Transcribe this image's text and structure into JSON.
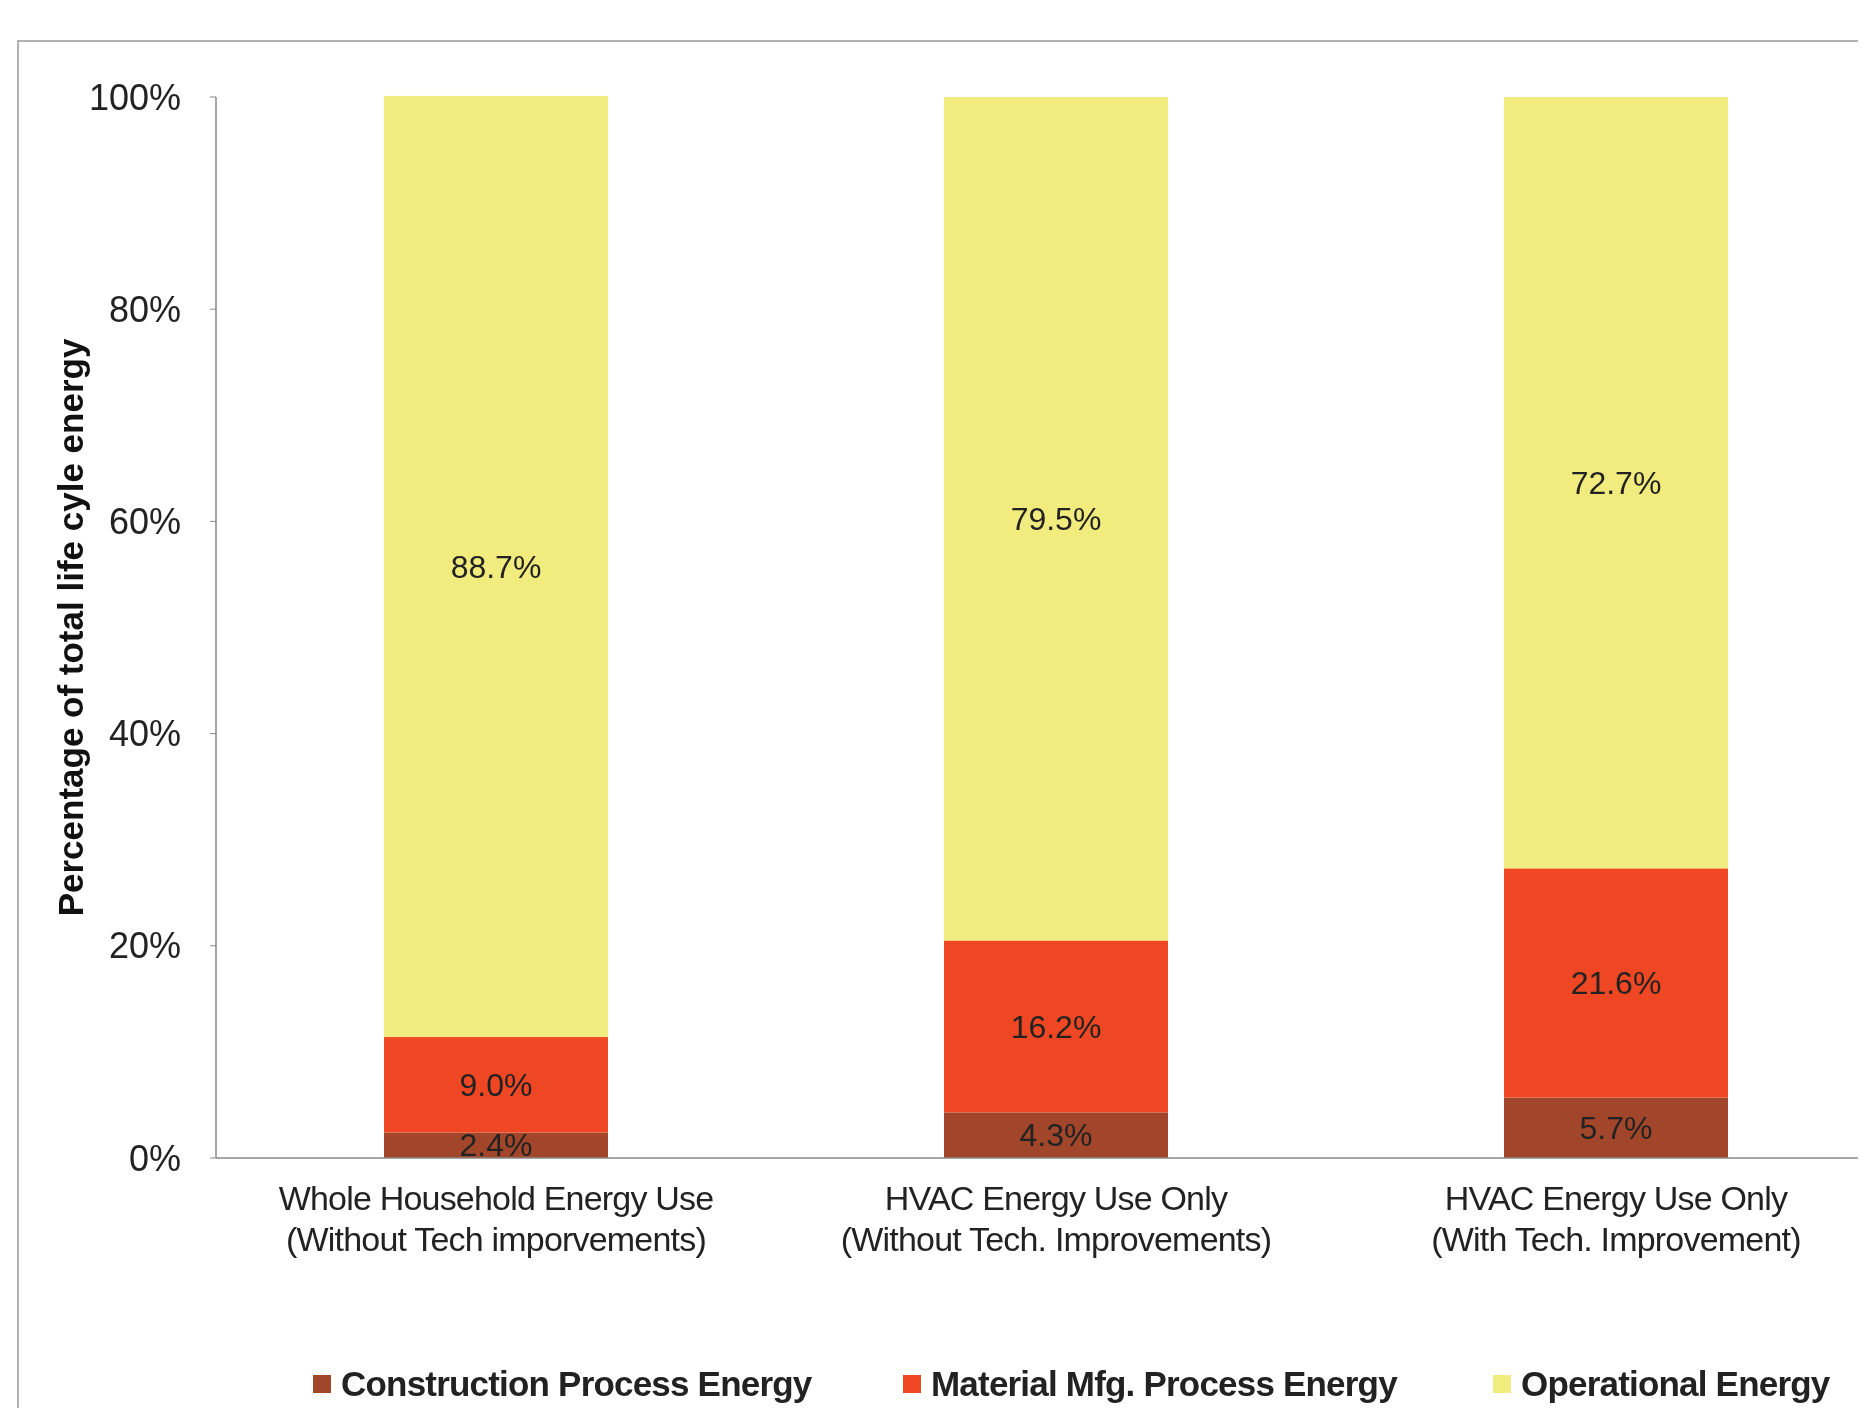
{
  "chart_data": {
    "type": "bar",
    "stacked": true,
    "ylabel": "Percentage of total life cyle energy",
    "categories": [
      "Whole Household Energy Use\n(Without Tech imporvements)",
      "HVAC Energy Use Only\n(Without Tech. Improvements)",
      "HVAC Energy Use Only\n(With Tech. Improvement)"
    ],
    "series": [
      {
        "name": "Construction Process Energy",
        "color": "#a2462b",
        "values": [
          2.4,
          4.3,
          5.7
        ],
        "value_labels": [
          "2.4%",
          "4.3%",
          "5.7%"
        ]
      },
      {
        "name": "Material Mfg. Process Energy",
        "color": "#ef4723",
        "values": [
          9.0,
          16.2,
          21.6
        ],
        "value_labels": [
          "9.0%",
          "16.2%",
          "21.6%"
        ]
      },
      {
        "name": "Operational Energy",
        "color": "#f2ec7e",
        "values": [
          88.7,
          79.5,
          72.7
        ],
        "value_labels": [
          "88.7%",
          "79.5%",
          "72.7%"
        ]
      }
    ],
    "ylim": [
      0,
      100
    ],
    "yticks": [
      {
        "value": 0,
        "label": "0%"
      },
      {
        "value": 20,
        "label": "20%"
      },
      {
        "value": 40,
        "label": "40%"
      },
      {
        "value": 60,
        "label": "60%"
      },
      {
        "value": 80,
        "label": "80%"
      },
      {
        "value": 100,
        "label": "100%"
      }
    ],
    "grid": false,
    "legend": "bottom"
  }
}
